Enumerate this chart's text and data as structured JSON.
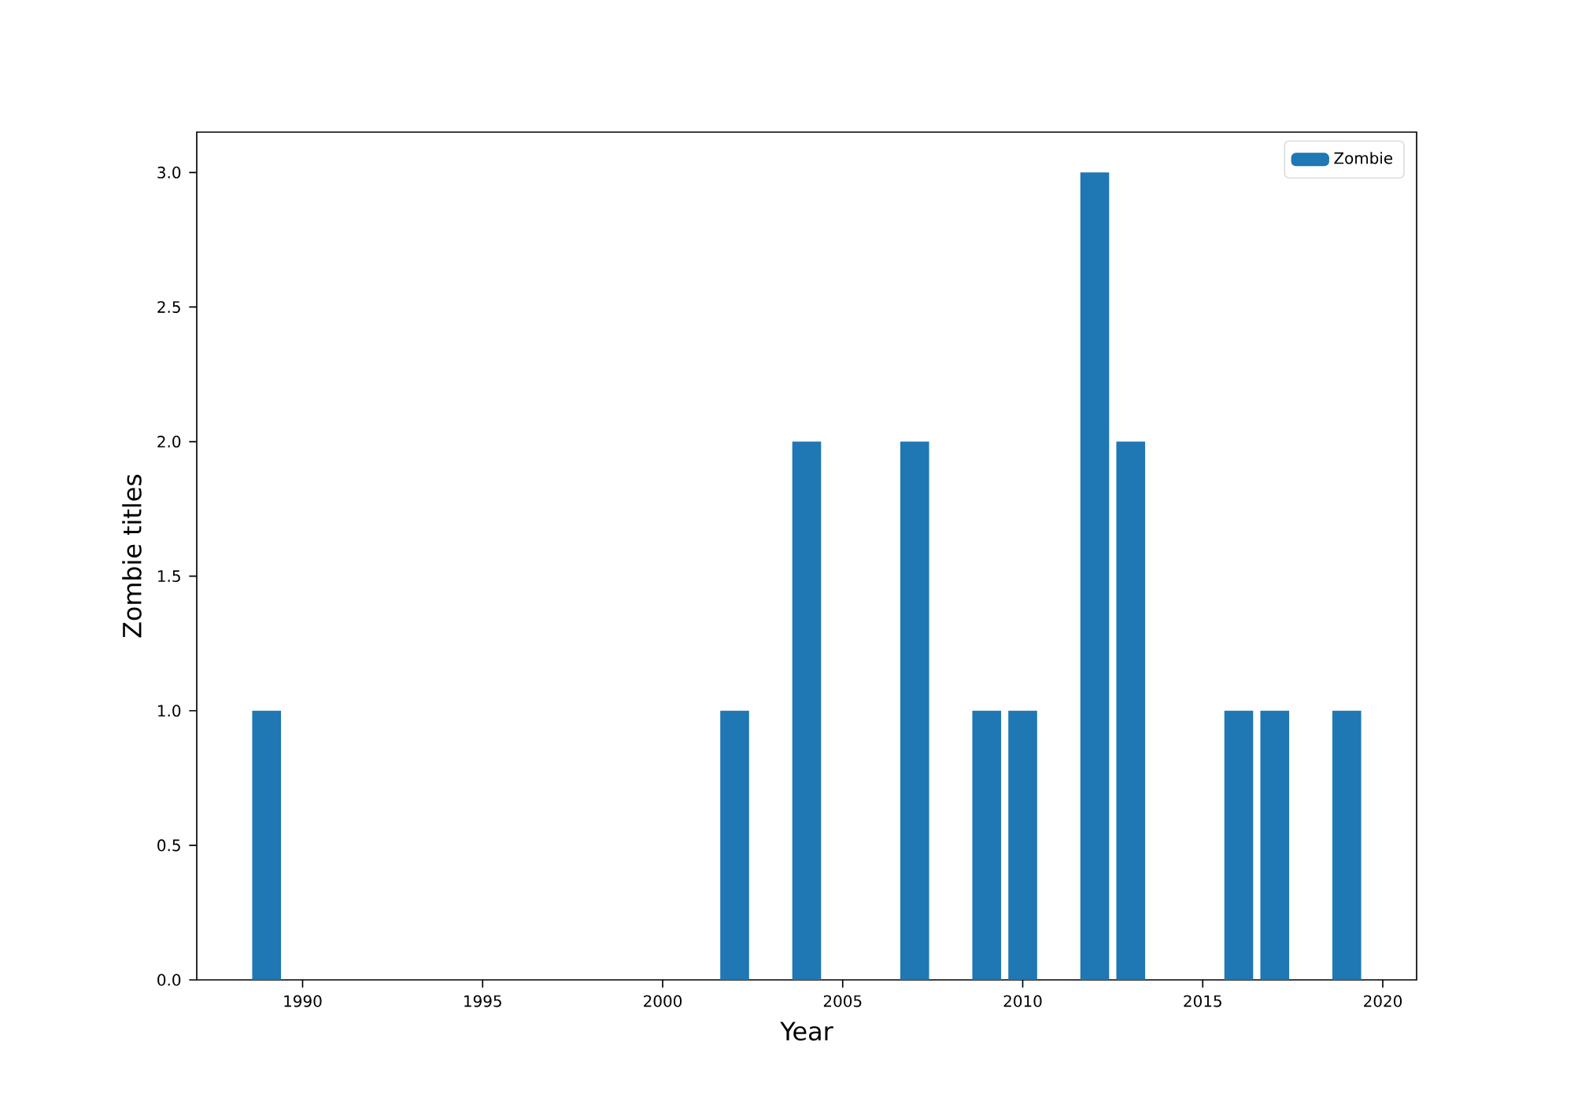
{
  "chart_data": {
    "type": "bar",
    "xlabel": "Year",
    "ylabel": "Zombie titles",
    "x": [
      1989,
      2002,
      2004,
      2007,
      2009,
      2010,
      2012,
      2013,
      2016,
      2017,
      2019
    ],
    "series": [
      {
        "name": "Zombie",
        "color": "#1f77b4",
        "values": [
          1,
          1,
          2,
          2,
          1,
          1,
          3,
          2,
          1,
          1,
          1
        ]
      }
    ],
    "xlim": [
      1987.06,
      2020.94
    ],
    "ylim": [
      0,
      3.15
    ],
    "xticks": [
      1990,
      1995,
      2000,
      2005,
      2010,
      2015,
      2020
    ],
    "yticks": [
      {
        "value": 0,
        "label": "0.0"
      },
      {
        "value": 0.5,
        "label": "0.5"
      },
      {
        "value": 1,
        "label": "1.0"
      },
      {
        "value": 1.5,
        "label": "1.5"
      },
      {
        "value": 2,
        "label": "2.0"
      },
      {
        "value": 2.5,
        "label": "2.5"
      },
      {
        "value": 3,
        "label": "3.0"
      }
    ],
    "legend": "top right",
    "grid": false
  }
}
